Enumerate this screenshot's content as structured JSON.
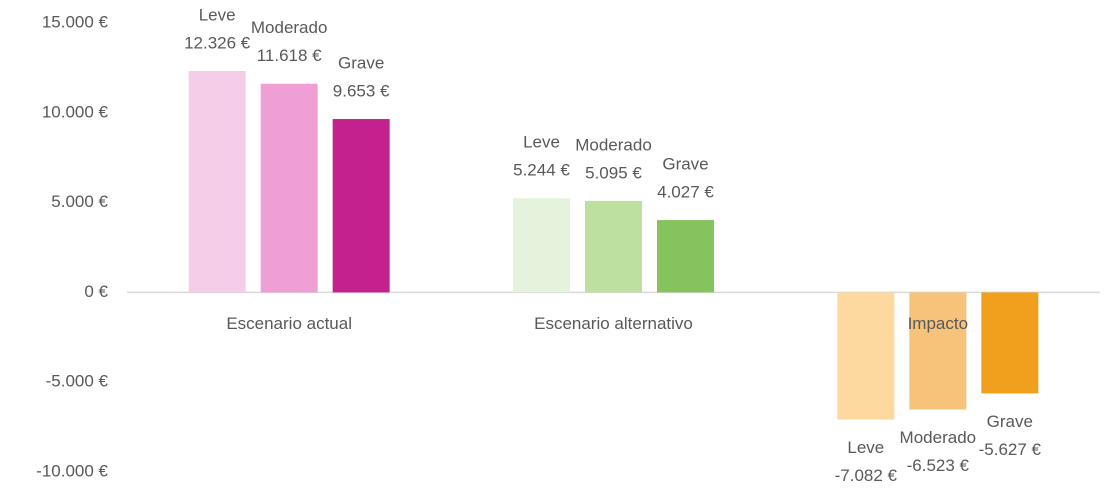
{
  "chart_data": {
    "type": "bar",
    "categories": [
      "Escenario actual",
      "Escenario alternativo",
      "Impacto"
    ],
    "series": [
      {
        "name": "Leve",
        "colors": [
          "#f6cde8",
          "#e5f3dc",
          "#fdd9a0"
        ],
        "values": [
          12326,
          5244,
          -7082
        ],
        "value_labels": [
          "12.326 €",
          "5.244 €",
          "-7.082 €"
        ]
      },
      {
        "name": "Moderado",
        "colors": [
          "#f09fd5",
          "#bddfa0",
          "#f7c27a"
        ],
        "values": [
          11618,
          5095,
          -6523
        ],
        "value_labels": [
          "11.618 €",
          "5.095 €",
          "-6.523 €"
        ]
      },
      {
        "name": "Grave",
        "colors": [
          "#c4218e",
          "#85c35c",
          "#f0a01c"
        ],
        "values": [
          9653,
          4027,
          -5627
        ],
        "value_labels": [
          "9.653 €",
          "4.027 €",
          "-5.627 €"
        ]
      }
    ],
    "ylim": [
      -10000,
      15000
    ],
    "yticks": [
      {
        "value": -10000,
        "label": "-10.000 €"
      },
      {
        "value": -5000,
        "label": "-5.000 €"
      },
      {
        "value": 0,
        "label": "0 €"
      },
      {
        "value": 5000,
        "label": "5.000 €"
      },
      {
        "value": 10000,
        "label": "10.000 €"
      },
      {
        "value": 15000,
        "label": "15.000 €"
      }
    ],
    "grid": false
  }
}
